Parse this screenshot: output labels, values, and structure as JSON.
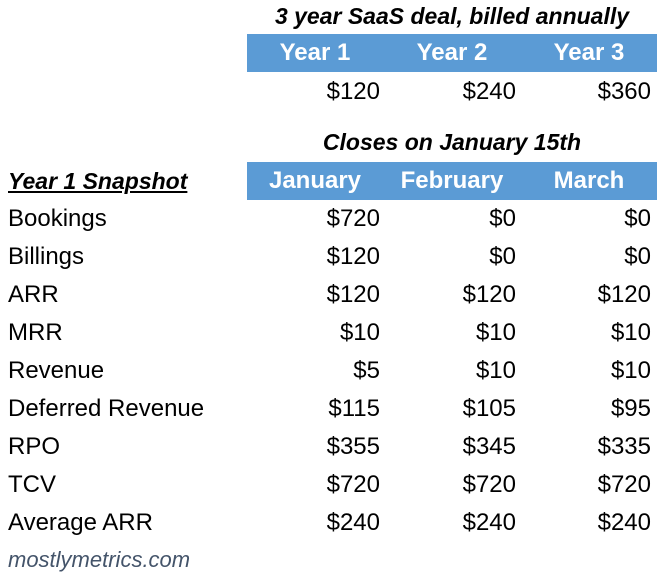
{
  "deal_title": "3 year SaaS deal, billed annually",
  "years": {
    "headers": [
      "Year 1",
      "Year 2",
      "Year 3"
    ],
    "values": [
      "$120",
      "$240",
      "$360"
    ]
  },
  "close_title": "Closes on January 15th",
  "snapshot": {
    "label": "Year 1 Snapshot",
    "months": [
      "January",
      "February",
      "March"
    ],
    "rows": [
      {
        "label": "Bookings",
        "values": [
          "$720",
          "$0",
          "$0"
        ]
      },
      {
        "label": "Billings",
        "values": [
          "$120",
          "$0",
          "$0"
        ]
      },
      {
        "label": "ARR",
        "values": [
          "$120",
          "$120",
          "$120"
        ]
      },
      {
        "label": "MRR",
        "values": [
          "$10",
          "$10",
          "$10"
        ]
      },
      {
        "label": "Revenue",
        "values": [
          "$5",
          "$10",
          "$10"
        ]
      },
      {
        "label": "Deferred Revenue",
        "values": [
          "$115",
          "$105",
          "$95"
        ]
      },
      {
        "label": "RPO",
        "values": [
          "$355",
          "$345",
          "$335"
        ]
      },
      {
        "label": "TCV",
        "values": [
          "$720",
          "$720",
          "$720"
        ]
      },
      {
        "label": "Average ARR",
        "values": [
          "$240",
          "$240",
          "$240"
        ]
      }
    ]
  },
  "footer": "mostlymetrics.com",
  "colors": {
    "header_fill": "#5b9bd5",
    "header_text": "#ffffff",
    "footer_text": "#44546a"
  }
}
